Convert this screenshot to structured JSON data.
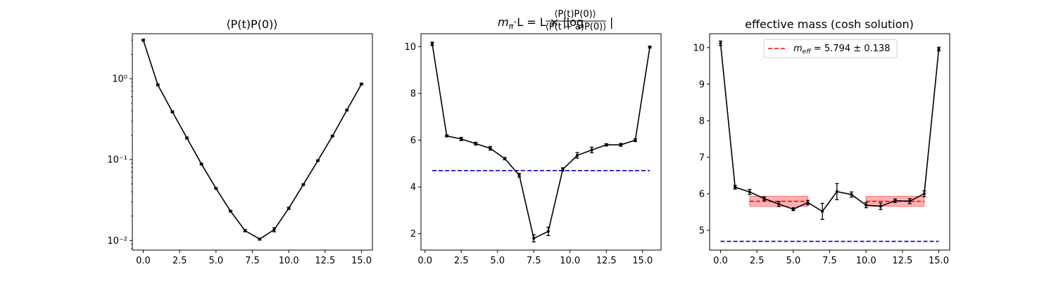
{
  "chart_data": [
    {
      "type": "line",
      "title": "⟨P(t)P(0)⟩",
      "xlabel": "",
      "ylabel": "",
      "yscale": "log",
      "xlim": [
        -0.75,
        15.75
      ],
      "ylim": [
        0.0076,
        3.6
      ],
      "xticks": [
        0.0,
        2.5,
        5.0,
        7.5,
        10.0,
        12.5,
        15.0
      ],
      "xtick_labels": [
        "0.0",
        "2.5",
        "5.0",
        "7.5",
        "10.0",
        "12.5",
        "15.0"
      ],
      "yticks": [
        1,
        0.1,
        0.01
      ],
      "ytick_labels": [
        "10⁰",
        "10⁻¹",
        "10⁻²"
      ],
      "grid": false,
      "series": [
        {
          "x": [
            0,
            1,
            2,
            3,
            4,
            5,
            6,
            7,
            8,
            9,
            10,
            11,
            12,
            13,
            14,
            15
          ],
          "y": [
            3.0,
            0.84,
            0.39,
            0.185,
            0.088,
            0.044,
            0.023,
            0.0132,
            0.0104,
            0.0136,
            0.025,
            0.049,
            0.097,
            0.195,
            0.41,
            0.86
          ],
          "err": [
            0.08,
            0.02,
            0.01,
            0.005,
            0.002,
            0.001,
            0.0005,
            0.0004,
            0.0003,
            0.0008,
            0.0008,
            0.001,
            0.002,
            0.004,
            0.01,
            0.02
          ],
          "color": "#000000"
        }
      ]
    },
    {
      "type": "line",
      "title": "mπ·L = L × |log (⟨P(t)P(0)⟩ / ⟨P(t+a)P(0)⟩)|",
      "title_parts": {
        "lhs": "m",
        "lhs_sub": "π",
        "mid": "·L = L × |log",
        "num": "⟨P(t)P(0)⟩",
        "den": "⟨P(t + a)P(0)⟩",
        "end": "|"
      },
      "xlabel": "",
      "ylabel": "",
      "xlim": [
        -0.275,
        16.275
      ],
      "ylim": [
        1.3,
        10.55
      ],
      "xticks": [
        0.0,
        2.5,
        5.0,
        7.5,
        10.0,
        12.5,
        15.0
      ],
      "xtick_labels": [
        "0.0",
        "2.5",
        "5.0",
        "7.5",
        "10.0",
        "12.5",
        "15.0"
      ],
      "yticks": [
        2,
        4,
        6,
        8,
        10
      ],
      "ytick_labels": [
        "2",
        "4",
        "6",
        "8",
        "10"
      ],
      "grid": false,
      "series": [
        {
          "x": [
            0.5,
            1.5,
            2.5,
            3.5,
            4.5,
            5.5,
            6.5,
            7.5,
            8.5,
            9.5,
            10.5,
            11.5,
            12.5,
            13.5,
            14.5,
            15.5
          ],
          "y": [
            10.12,
            6.18,
            6.05,
            5.85,
            5.65,
            5.21,
            4.5,
            1.8,
            2.1,
            4.75,
            5.35,
            5.58,
            5.8,
            5.8,
            6.0,
            9.98
          ],
          "err": [
            0.07,
            0.04,
            0.07,
            0.06,
            0.08,
            0.05,
            0.08,
            0.15,
            0.18,
            0.07,
            0.12,
            0.12,
            0.05,
            0.06,
            0.06,
            0.04
          ],
          "color": "#000000"
        }
      ],
      "reference_lines": [
        {
          "y": 4.7,
          "x_from": 0.5,
          "x_to": 15.5,
          "color": "#0000cc",
          "style": "dashed"
        }
      ]
    },
    {
      "type": "line",
      "title": "effective mass (cosh solution)",
      "xlabel": "",
      "ylabel": "",
      "xlim": [
        -0.75,
        15.75
      ],
      "ylim": [
        4.46,
        10.38
      ],
      "xticks": [
        0.0,
        2.5,
        5.0,
        7.5,
        10.0,
        12.5,
        15.0
      ],
      "xtick_labels": [
        "0.0",
        "2.5",
        "5.0",
        "7.5",
        "10.0",
        "12.5",
        "15.0"
      ],
      "yticks": [
        5,
        6,
        7,
        8,
        9,
        10
      ],
      "ytick_labels": [
        "5",
        "6",
        "7",
        "8",
        "9",
        "10"
      ],
      "grid": false,
      "legend": {
        "position": "top-center",
        "label_main": "m",
        "label_sub": "eff",
        "label_rest": " = 5.794 ± 0.138",
        "color": "#ff0000",
        "style": "dashed"
      },
      "series": [
        {
          "x": [
            0,
            1,
            2,
            3,
            4,
            5,
            6,
            7,
            8,
            9,
            10,
            11,
            12,
            13,
            14,
            15
          ],
          "y": [
            10.12,
            6.18,
            6.05,
            5.87,
            5.72,
            5.58,
            5.76,
            5.52,
            6.06,
            5.98,
            5.69,
            5.66,
            5.81,
            5.8,
            6.0,
            9.96
          ],
          "err": [
            0.06,
            0.05,
            0.07,
            0.05,
            0.07,
            0.04,
            0.06,
            0.22,
            0.22,
            0.07,
            0.07,
            0.09,
            0.05,
            0.07,
            0.08,
            0.05
          ],
          "color": "#000000"
        }
      ],
      "fit_bands": [
        {
          "x_from": 2,
          "x_to": 6,
          "value": 5.794,
          "err": 0.138,
          "color": "#ff0000"
        },
        {
          "x_from": 10,
          "x_to": 14,
          "value": 5.794,
          "err": 0.138,
          "color": "#ff0000"
        }
      ],
      "reference_lines": [
        {
          "y": 4.7,
          "x_from": 0,
          "x_to": 15,
          "color": "#0000cc",
          "style": "dashed"
        }
      ]
    }
  ]
}
